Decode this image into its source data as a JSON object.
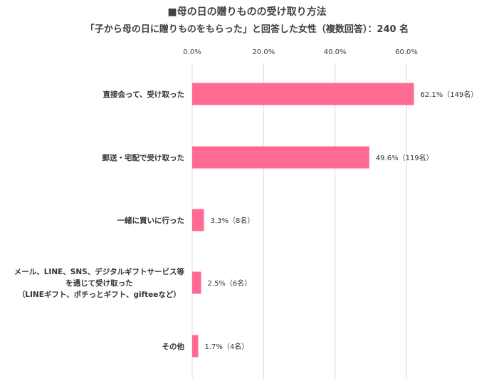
{
  "chart_data": {
    "type": "bar",
    "orientation": "horizontal",
    "title": "■母の日の贈りものの受け取り方法",
    "subtitle": "「子から母の日に贈りものをもらった」と回答した女性（複数回答）：240 名",
    "categories": [
      [
        "直接会って、受け取った"
      ],
      [
        "郵送・宅配で受け取った"
      ],
      [
        "一緒に買いに行った"
      ],
      [
        "メール、LINE、SNS、デジタルギフトサービス等",
        "を通じて受け取った",
        "（LINEギフト、ポチっとギフト、gifteeなど）"
      ],
      [
        "その他"
      ]
    ],
    "values": [
      62.1,
      49.6,
      3.3,
      2.5,
      1.7
    ],
    "data_labels": [
      "62.1%（149名）",
      "49.6%（119名）",
      "3.3%（8名）",
      "2.5%（6名）",
      "1.7%（4名）"
    ],
    "xlim": [
      0,
      70
    ],
    "xticks": [
      0,
      20,
      40,
      60
    ],
    "xtick_labels": [
      "0.0%",
      "20.0%",
      "40.0%",
      "60.0%"
    ],
    "bar_color": "#FF6A93",
    "grid_color": "#D9D9D9",
    "gridlines": true,
    "xaxis_position": "top"
  }
}
